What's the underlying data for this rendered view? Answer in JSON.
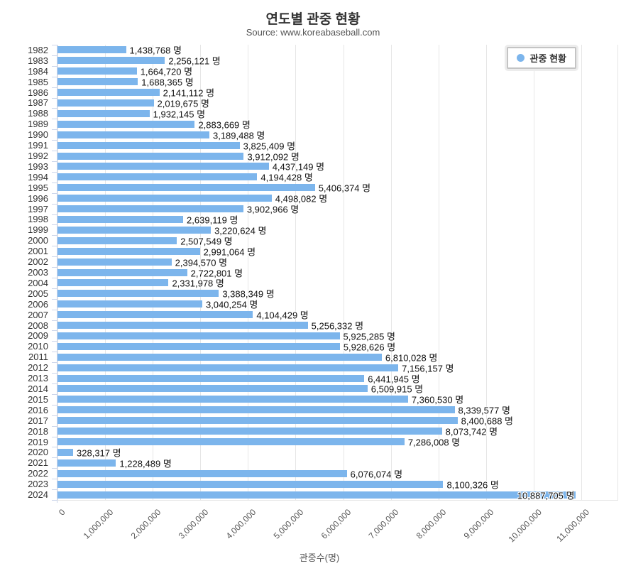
{
  "header": {
    "title": "연도별 관중 현황",
    "subtitle": "Source: www.koreabaseball.com"
  },
  "legend": {
    "label": "관중 현황",
    "marker_color": "#7cb5ec",
    "position": "top-right"
  },
  "colors": {
    "bar": "#7cb5ec",
    "gridline": "#e6e6e6",
    "axis_line": "#ccd6eb",
    "title_text": "#333333",
    "subtitle_text": "#555555",
    "value_label_text": "#111111"
  },
  "chart_data": {
    "type": "bar",
    "orientation": "horizontal",
    "title": "연도별 관중 현황",
    "subtitle": "Source: www.koreabaseball.com",
    "xlabel": "관중수(명)",
    "ylabel": "",
    "xlim": [
      0,
      11000000
    ],
    "grid": true,
    "legend_position": "top-right",
    "series_name": "관중 현황",
    "value_suffix": "명",
    "x_ticks": [
      "0",
      "1,000,000",
      "2,000,000",
      "3,000,000",
      "4,000,000",
      "5,000,000",
      "6,000,000",
      "7,000,000",
      "8,000,000",
      "9,000,000",
      "10,000,000",
      "11,000,000"
    ],
    "categories": [
      "1982",
      "1983",
      "1984",
      "1985",
      "1986",
      "1987",
      "1988",
      "1989",
      "1990",
      "1991",
      "1992",
      "1993",
      "1994",
      "1995",
      "1996",
      "1997",
      "1998",
      "1999",
      "2000",
      "2001",
      "2002",
      "2003",
      "2004",
      "2005",
      "2006",
      "2007",
      "2008",
      "2009",
      "2010",
      "2011",
      "2012",
      "2013",
      "2014",
      "2015",
      "2016",
      "2017",
      "2018",
      "2019",
      "2020",
      "2021",
      "2022",
      "2023",
      "2024"
    ],
    "values": [
      1438768,
      2256121,
      1664720,
      1688365,
      2141112,
      2019675,
      1932145,
      2883669,
      3189488,
      3825409,
      3912092,
      4437149,
      4194428,
      5406374,
      4498082,
      3902966,
      2639119,
      3220624,
      2507549,
      2991064,
      2394570,
      2722801,
      2331978,
      3388349,
      3040254,
      4104429,
      5256332,
      5925285,
      5928626,
      6810028,
      7156157,
      6441945,
      6509915,
      7360530,
      8339577,
      8400688,
      8073742,
      7286008,
      328317,
      1228489,
      6076074,
      8100326,
      10887705
    ],
    "value_labels": [
      "1,438,768 명",
      "2,256,121 명",
      "1,664,720 명",
      "1,688,365 명",
      "2,141,112 명",
      "2,019,675 명",
      "1,932,145 명",
      "2,883,669 명",
      "3,189,488 명",
      "3,825,409 명",
      "3,912,092 명",
      "4,437,149 명",
      "4,194,428 명",
      "5,406,374 명",
      "4,498,082 명",
      "3,902,966 명",
      "2,639,119 명",
      "3,220,624 명",
      "2,507,549 명",
      "2,991,064 명",
      "2,394,570 명",
      "2,722,801 명",
      "2,331,978 명",
      "3,388,349 명",
      "3,040,254 명",
      "4,104,429 명",
      "5,256,332 명",
      "5,925,285 명",
      "5,928,626 명",
      "6,810,028 명",
      "7,156,157 명",
      "6,441,945 명",
      "6,509,915 명",
      "7,360,530 명",
      "8,339,577 명",
      "8,400,688 명",
      "8,073,742 명",
      "7,286,008 명",
      "328,317 명",
      "1,228,489 명",
      "6,076,074 명",
      "8,100,326 명",
      "10,887,705 명"
    ]
  }
}
